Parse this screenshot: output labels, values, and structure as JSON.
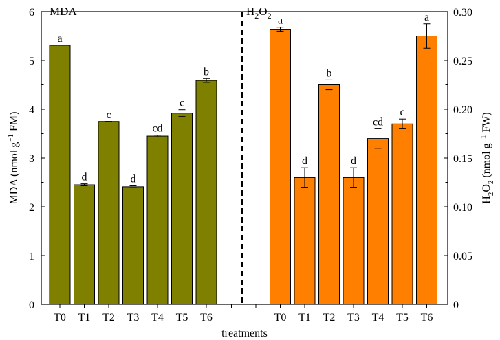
{
  "chart_data": {
    "type": "bar",
    "xlabel": "treatments",
    "panels": [
      {
        "panel_label": "MDA",
        "panel_label_sub": "",
        "panel_label_tail": "",
        "ylabel": "MDA (nmol g",
        "ylabel_sup": "−1",
        "ylabel_tail": " FM)",
        "ylim": [
          0,
          6
        ],
        "yticks": [
          "0",
          "1",
          "2",
          "3",
          "4",
          "5",
          "6"
        ],
        "color": "#7f7f00",
        "categories": [
          "T0",
          "T1",
          "T2",
          "T3",
          "T4",
          "T5",
          "T6"
        ],
        "values": [
          5.31,
          2.45,
          3.75,
          2.41,
          3.45,
          3.92,
          4.59
        ],
        "errors": [
          0.0,
          0.02,
          0.0,
          0.02,
          0.02,
          0.07,
          0.04
        ],
        "letters": [
          "a",
          "d",
          "c",
          "d",
          "cd",
          "c",
          "b"
        ]
      },
      {
        "panel_label": "H",
        "panel_label_sub": "2",
        "panel_label_mid": "O",
        "panel_label_sub2": "2",
        "ylabel": "H",
        "ylabel_sub": "2",
        "ylabel_mid": "O",
        "ylabel_sub2": "2",
        "ylabel_tail": " (nmol g",
        "ylabel_sup": "−1",
        "ylabel_tail2": " FW)",
        "ylim": [
          0,
          0.3
        ],
        "yticks": [
          "0",
          "0.05",
          "0.10",
          "0.15",
          "0.20",
          "0.25",
          "0.30"
        ],
        "color": "#ff7f00",
        "categories": [
          "T0",
          "T1",
          "T2",
          "T3",
          "T4",
          "T5",
          "T6"
        ],
        "values": [
          0.282,
          0.13,
          0.225,
          0.13,
          0.17,
          0.185,
          0.275
        ],
        "errors": [
          0.002,
          0.01,
          0.005,
          0.01,
          0.01,
          0.005,
          0.0125
        ],
        "letters": [
          "a",
          "d",
          "b",
          "d",
          "cd",
          "c",
          "a"
        ]
      }
    ],
    "colors": {
      "left_bars": "#7f7f00",
      "right_bars": "#ff7f00"
    },
    "divider": "dashed vertical line between panels"
  }
}
